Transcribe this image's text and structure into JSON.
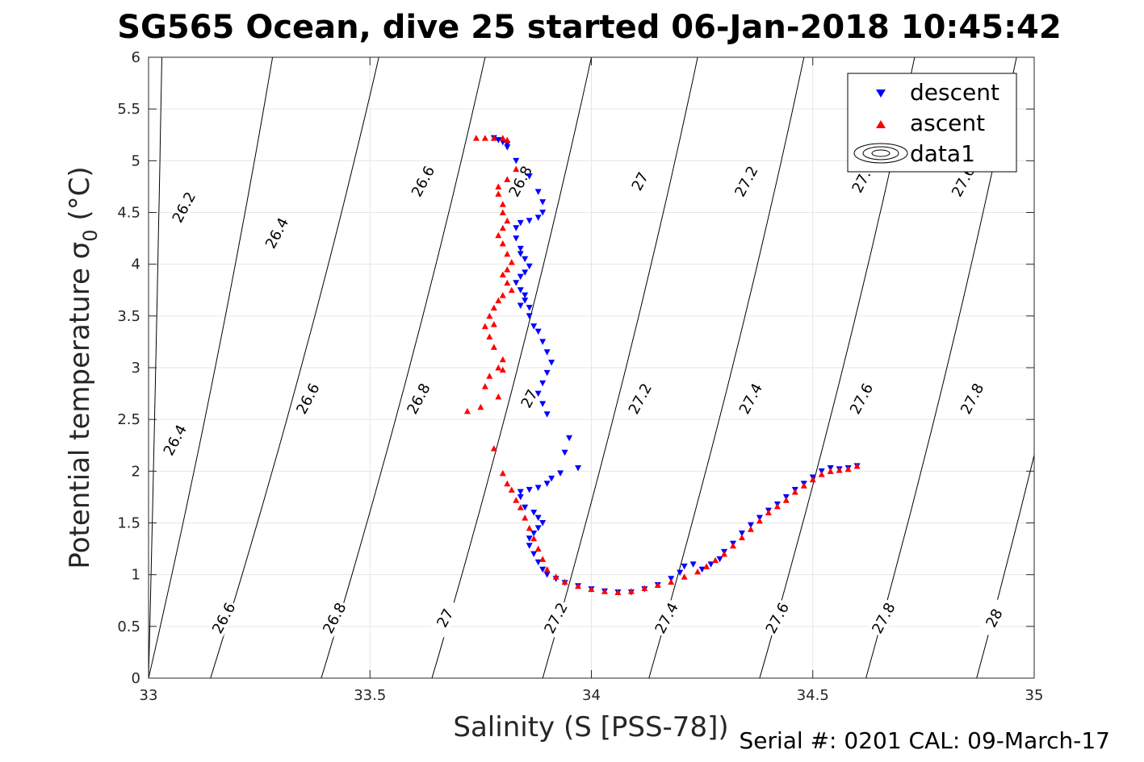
{
  "chart_data": {
    "type": "scatter",
    "title": "SG565 Ocean, dive 25 started 06-Jan-2018 10:45:42",
    "xlabel": "Salinity (S [PSS-78])",
    "ylabel": "Potential temperature σ",
    "ylabel_sub": "0",
    "ylabel_unit": " (°C)",
    "xlim": [
      33,
      35
    ],
    "ylim": [
      0,
      6
    ],
    "xticks": [
      33,
      33.5,
      34,
      34.5,
      35
    ],
    "xtick_labels": [
      "33",
      "33.5",
      "34",
      "34.5",
      "35"
    ],
    "yticks": [
      0,
      0.5,
      1,
      1.5,
      2,
      2.5,
      3,
      3.5,
      4,
      4.5,
      5,
      5.5,
      6
    ],
    "ytick_labels": [
      "0",
      "0.5",
      "1",
      "1.5",
      "2",
      "2.5",
      "3",
      "3.5",
      "4",
      "4.5",
      "5",
      "5.5",
      "6"
    ],
    "grid": true,
    "legend_position": "top-right",
    "footer": "Serial #: 0201  CAL: 09-March-17",
    "contours": {
      "name": "data1",
      "lines": [
        {
          "label": "26.2",
          "x0": 33.0,
          "x6": 33.03
        },
        {
          "label": "26.4",
          "x0": 33.0,
          "x6": 33.28
        },
        {
          "label": "26.6",
          "x0": 33.14,
          "x6": 33.52
        },
        {
          "label": "26.8",
          "x0": 33.39,
          "x6": 33.76
        },
        {
          "label": "27",
          "x0": 33.64,
          "x6": 34.0
        },
        {
          "label": "27.2",
          "x0": 33.89,
          "x6": 34.24
        },
        {
          "label": "27.4",
          "x0": 34.13,
          "x6": 34.48
        },
        {
          "label": "27.6",
          "x0": 34.38,
          "x6": 34.73
        },
        {
          "label": "27.8",
          "x0": 34.62,
          "x6": 34.96
        },
        {
          "label": "28",
          "x0": 34.87,
          "x6": 35.2
        }
      ],
      "labels": [
        {
          "text": "26.2",
          "x": 33.08,
          "y": 4.55
        },
        {
          "text": "26.4",
          "x": 33.29,
          "y": 4.3
        },
        {
          "text": "26.6",
          "x": 33.62,
          "y": 4.8
        },
        {
          "text": "26.8",
          "x": 33.84,
          "y": 4.8
        },
        {
          "text": "27",
          "x": 34.11,
          "y": 4.8
        },
        {
          "text": "27.2",
          "x": 34.35,
          "y": 4.8
        },
        {
          "text": "27.",
          "x": 34.61,
          "y": 4.8
        },
        {
          "text": "27.6",
          "x": 34.84,
          "y": 4.8
        },
        {
          "text": "26.4",
          "x": 33.06,
          "y": 2.3
        },
        {
          "text": "26.6",
          "x": 33.36,
          "y": 2.7
        },
        {
          "text": "26.8",
          "x": 33.61,
          "y": 2.7
        },
        {
          "text": "27",
          "x": 33.86,
          "y": 2.7
        },
        {
          "text": "27.2",
          "x": 34.11,
          "y": 2.7
        },
        {
          "text": "27.4",
          "x": 34.36,
          "y": 2.7
        },
        {
          "text": "27.6",
          "x": 34.61,
          "y": 2.7
        },
        {
          "text": "27.8",
          "x": 34.86,
          "y": 2.7
        },
        {
          "text": "26.6",
          "x": 33.17,
          "y": 0.58
        },
        {
          "text": "26.8",
          "x": 33.42,
          "y": 0.58
        },
        {
          "text": "27",
          "x": 33.67,
          "y": 0.58
        },
        {
          "text": "27.2",
          "x": 33.92,
          "y": 0.58
        },
        {
          "text": "27.4",
          "x": 34.17,
          "y": 0.58
        },
        {
          "text": "27.6",
          "x": 34.42,
          "y": 0.58
        },
        {
          "text": "27.8",
          "x": 34.66,
          "y": 0.58
        },
        {
          "text": "28",
          "x": 34.91,
          "y": 0.58
        }
      ]
    },
    "series": [
      {
        "name": "descent",
        "color": "#0000ff",
        "marker": "triangle-down",
        "points": [
          [
            33.78,
            5.22
          ],
          [
            33.79,
            5.2
          ],
          [
            33.8,
            5.18
          ],
          [
            33.81,
            5.16
          ],
          [
            33.81,
            5.13
          ],
          [
            33.83,
            5.0
          ],
          [
            33.86,
            4.85
          ],
          [
            33.88,
            4.7
          ],
          [
            33.89,
            4.6
          ],
          [
            33.89,
            4.5
          ],
          [
            33.88,
            4.45
          ],
          [
            33.86,
            4.42
          ],
          [
            33.84,
            4.4
          ],
          [
            33.83,
            4.35
          ],
          [
            33.83,
            4.25
          ],
          [
            33.84,
            4.15
          ],
          [
            33.84,
            4.1
          ],
          [
            33.85,
            4.05
          ],
          [
            33.86,
            3.98
          ],
          [
            33.85,
            3.92
          ],
          [
            33.84,
            3.88
          ],
          [
            33.83,
            3.82
          ],
          [
            33.84,
            3.75
          ],
          [
            33.85,
            3.7
          ],
          [
            33.85,
            3.65
          ],
          [
            33.84,
            3.6
          ],
          [
            33.86,
            3.58
          ],
          [
            33.86,
            3.5
          ],
          [
            33.87,
            3.4
          ],
          [
            33.88,
            3.35
          ],
          [
            33.89,
            3.25
          ],
          [
            33.9,
            3.15
          ],
          [
            33.91,
            3.05
          ],
          [
            33.9,
            2.95
          ],
          [
            33.89,
            2.85
          ],
          [
            33.88,
            2.75
          ],
          [
            33.89,
            2.65
          ],
          [
            33.9,
            2.55
          ],
          [
            33.95,
            2.32
          ],
          [
            33.94,
            2.18
          ],
          [
            33.97,
            2.03
          ],
          [
            33.93,
            1.98
          ],
          [
            33.91,
            1.93
          ],
          [
            33.9,
            1.88
          ],
          [
            33.88,
            1.84
          ],
          [
            33.86,
            1.82
          ],
          [
            33.84,
            1.8
          ],
          [
            33.84,
            1.75
          ],
          [
            33.85,
            1.65
          ],
          [
            33.87,
            1.6
          ],
          [
            33.88,
            1.55
          ],
          [
            33.89,
            1.5
          ],
          [
            33.88,
            1.45
          ],
          [
            33.87,
            1.4
          ],
          [
            33.86,
            1.35
          ],
          [
            33.86,
            1.28
          ],
          [
            33.87,
            1.2
          ],
          [
            33.88,
            1.12
          ],
          [
            33.89,
            1.05
          ],
          [
            33.9,
            1.0
          ],
          [
            33.92,
            0.96
          ],
          [
            33.94,
            0.92
          ],
          [
            33.97,
            0.89
          ],
          [
            34.0,
            0.86
          ],
          [
            34.03,
            0.84
          ],
          [
            34.06,
            0.83
          ],
          [
            34.09,
            0.83
          ],
          [
            34.12,
            0.86
          ],
          [
            34.15,
            0.9
          ],
          [
            34.18,
            0.96
          ],
          [
            34.2,
            1.02
          ],
          [
            34.21,
            1.08
          ],
          [
            34.23,
            1.1
          ],
          [
            34.25,
            1.05
          ],
          [
            34.27,
            1.1
          ],
          [
            34.29,
            1.15
          ],
          [
            34.3,
            1.22
          ],
          [
            34.32,
            1.3
          ],
          [
            34.34,
            1.4
          ],
          [
            34.36,
            1.48
          ],
          [
            34.38,
            1.55
          ],
          [
            34.4,
            1.62
          ],
          [
            34.42,
            1.68
          ],
          [
            34.44,
            1.75
          ],
          [
            34.46,
            1.82
          ],
          [
            34.48,
            1.88
          ],
          [
            34.5,
            1.94
          ],
          [
            34.52,
            2.0
          ],
          [
            34.54,
            2.03
          ],
          [
            34.56,
            2.02
          ],
          [
            34.58,
            2.03
          ],
          [
            34.6,
            2.05
          ]
        ]
      },
      {
        "name": "ascent",
        "color": "#ff0000",
        "marker": "triangle-up",
        "points": [
          [
            33.74,
            5.22
          ],
          [
            33.76,
            5.22
          ],
          [
            33.78,
            5.22
          ],
          [
            33.8,
            5.22
          ],
          [
            33.81,
            5.2
          ],
          [
            33.83,
            4.92
          ],
          [
            33.81,
            4.82
          ],
          [
            33.79,
            4.75
          ],
          [
            33.79,
            4.68
          ],
          [
            33.8,
            4.58
          ],
          [
            33.8,
            4.5
          ],
          [
            33.81,
            4.42
          ],
          [
            33.8,
            4.35
          ],
          [
            33.79,
            4.28
          ],
          [
            33.8,
            4.2
          ],
          [
            33.81,
            4.1
          ],
          [
            33.82,
            4.02
          ],
          [
            33.81,
            3.95
          ],
          [
            33.8,
            3.9
          ],
          [
            33.81,
            3.82
          ],
          [
            33.82,
            3.75
          ],
          [
            33.8,
            3.7
          ],
          [
            33.79,
            3.65
          ],
          [
            33.78,
            3.58
          ],
          [
            33.77,
            3.5
          ],
          [
            33.78,
            3.42
          ],
          [
            33.76,
            3.4
          ],
          [
            33.77,
            3.3
          ],
          [
            33.78,
            3.2
          ],
          [
            33.8,
            3.08
          ],
          [
            33.79,
            3.0
          ],
          [
            33.8,
            2.98
          ],
          [
            33.77,
            2.92
          ],
          [
            33.76,
            2.82
          ],
          [
            33.79,
            2.72
          ],
          [
            33.75,
            2.62
          ],
          [
            33.72,
            2.58
          ],
          [
            33.78,
            2.22
          ],
          [
            33.8,
            1.98
          ],
          [
            33.81,
            1.88
          ],
          [
            33.82,
            1.82
          ],
          [
            33.83,
            1.72
          ],
          [
            33.84,
            1.65
          ],
          [
            33.85,
            1.55
          ],
          [
            33.86,
            1.45
          ],
          [
            33.87,
            1.35
          ],
          [
            33.88,
            1.25
          ],
          [
            33.89,
            1.15
          ],
          [
            33.9,
            1.05
          ],
          [
            33.92,
            0.98
          ],
          [
            33.94,
            0.93
          ],
          [
            33.97,
            0.89
          ],
          [
            34.0,
            0.86
          ],
          [
            34.03,
            0.84
          ],
          [
            34.06,
            0.83
          ],
          [
            34.09,
            0.84
          ],
          [
            34.12,
            0.87
          ],
          [
            34.15,
            0.9
          ],
          [
            34.18,
            0.93
          ],
          [
            34.21,
            0.98
          ],
          [
            34.24,
            1.03
          ],
          [
            34.26,
            1.08
          ],
          [
            34.28,
            1.14
          ],
          [
            34.3,
            1.2
          ],
          [
            34.32,
            1.28
          ],
          [
            34.34,
            1.36
          ],
          [
            34.36,
            1.44
          ],
          [
            34.38,
            1.52
          ],
          [
            34.4,
            1.6
          ],
          [
            34.42,
            1.66
          ],
          [
            34.44,
            1.72
          ],
          [
            34.46,
            1.8
          ],
          [
            34.48,
            1.86
          ],
          [
            34.5,
            1.92
          ],
          [
            34.52,
            1.97
          ],
          [
            34.54,
            2.0
          ],
          [
            34.56,
            2.01
          ],
          [
            34.58,
            2.02
          ],
          [
            34.6,
            2.05
          ]
        ]
      }
    ]
  }
}
